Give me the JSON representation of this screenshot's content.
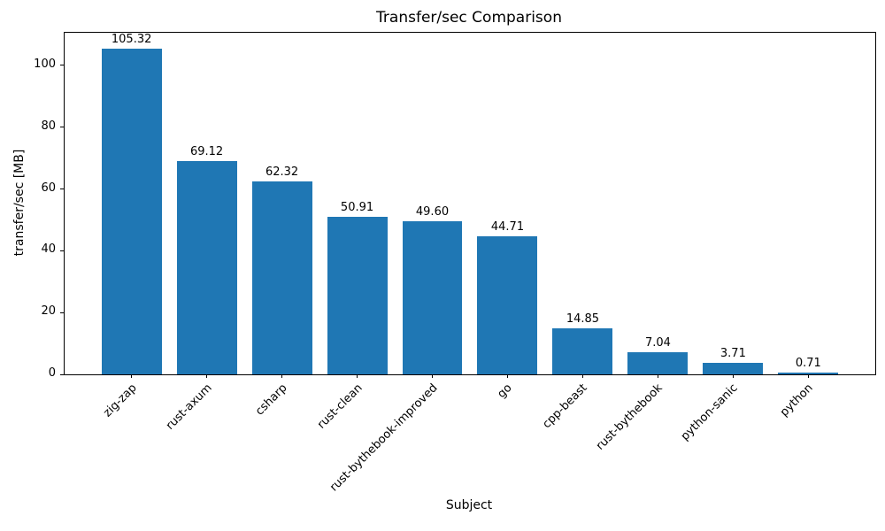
{
  "chart_data": {
    "type": "bar",
    "title": "Transfer/sec Comparison",
    "xlabel": "Subject",
    "ylabel": "transfer/sec [MB]",
    "categories": [
      "zig-zap",
      "rust-axum",
      "csharp",
      "rust-clean",
      "rust-bythebook-improved",
      "go",
      "cpp-beast",
      "rust-bythebook",
      "python-sanic",
      "python"
    ],
    "values": [
      105.32,
      69.12,
      62.32,
      50.91,
      49.6,
      44.71,
      14.85,
      7.04,
      3.71,
      0.71
    ],
    "value_labels": [
      "105.32",
      "69.12",
      "62.32",
      "50.91",
      "49.60",
      "44.71",
      "14.85",
      "7.04",
      "3.71",
      "0.71"
    ],
    "yticks": [
      0,
      20,
      40,
      60,
      80,
      100
    ],
    "ylim": [
      0,
      110.59
    ],
    "bar_color": "#1f77b4",
    "grid": false,
    "legend_position": "none"
  }
}
